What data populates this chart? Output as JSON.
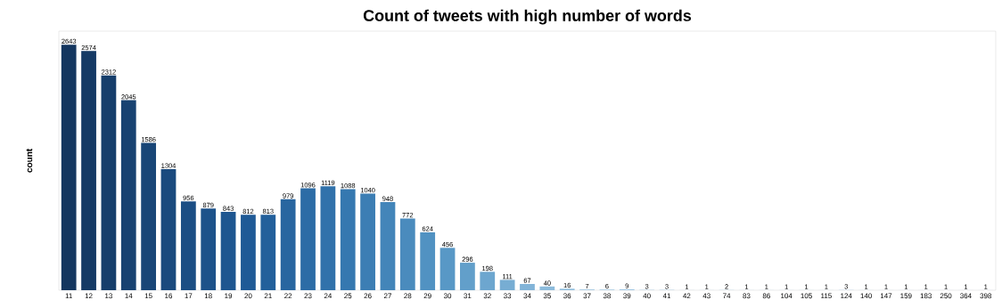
{
  "chart_data": {
    "type": "bar",
    "title": "Count of tweets with high number of words",
    "ylabel": "count",
    "categories": [
      "11",
      "12",
      "13",
      "14",
      "15",
      "16",
      "17",
      "18",
      "19",
      "20",
      "21",
      "22",
      "23",
      "24",
      "25",
      "26",
      "27",
      "28",
      "29",
      "30",
      "31",
      "32",
      "33",
      "34",
      "35",
      "36",
      "37",
      "38",
      "39",
      "40",
      "41",
      "42",
      "43",
      "74",
      "83",
      "86",
      "104",
      "105",
      "115",
      "124",
      "140",
      "147",
      "159",
      "183",
      "250",
      "364",
      "398"
    ],
    "values": [
      2643,
      2574,
      2312,
      2045,
      1586,
      1304,
      956,
      879,
      843,
      812,
      813,
      979,
      1096,
      1119,
      1088,
      1040,
      948,
      772,
      624,
      456,
      296,
      198,
      111,
      67,
      40,
      16,
      7,
      6,
      9,
      3,
      3,
      1,
      1,
      2,
      1,
      1,
      1,
      1,
      1,
      3,
      1,
      1,
      1,
      1,
      1,
      1,
      1
    ],
    "colors": [
      "#14365f",
      "#153a65",
      "#163e6b",
      "#184271",
      "#194677",
      "#1a4a7e",
      "#1b4e84",
      "#1d528a",
      "#1e5690",
      "#1f5a96",
      "#23609b",
      "#2866a0",
      "#2c6ca6",
      "#3172ab",
      "#3578b0",
      "#3c7eb4",
      "#4385b9",
      "#4a8bbd",
      "#5192c2",
      "#5898c6",
      "#629fca",
      "#6da6cf",
      "#77add3",
      "#82b4d8",
      "#8cbbdc",
      "#8fbddd",
      "#92bfde",
      "#95c0df",
      "#98c2e0",
      "#9bc4e1",
      "#9fc6e2",
      "#a2c7e3",
      "#a5c9e4",
      "#a8cbe5",
      "#abcde6",
      "#aecee7",
      "#b1d0e8",
      "#b4d2e9",
      "#b7d4ea",
      "#bad5eb",
      "#bdd7ec",
      "#c1d9ed",
      "#c4daee",
      "#c7dcef",
      "#cadef0",
      "#cde0f1",
      "#d0e2f2"
    ],
    "data_labels": true
  }
}
